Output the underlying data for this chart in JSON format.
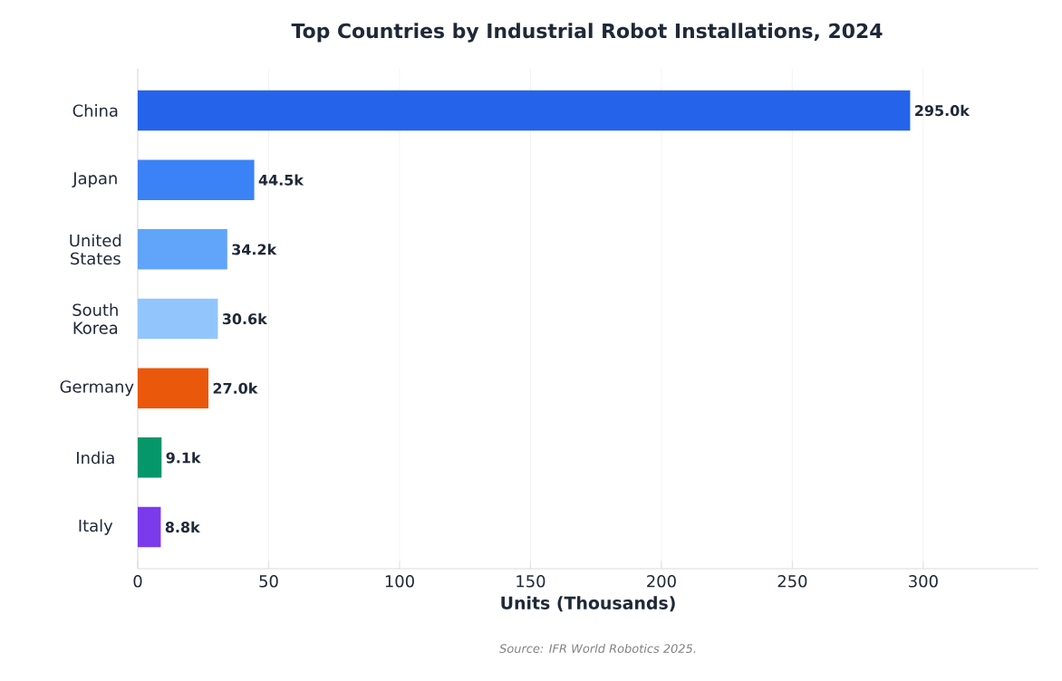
{
  "chart_data": {
    "type": "bar",
    "orientation": "horizontal",
    "title": "Top Countries by Industrial Robot Installations, 2024",
    "xlabel": "Units (Thousands)",
    "categories": [
      "China",
      "Japan",
      "United States",
      "South Korea",
      "Germany",
      "India",
      "Italy"
    ],
    "values": [
      295.0,
      44.5,
      34.2,
      30.6,
      27.0,
      9.1,
      8.8
    ],
    "colors": [
      "#2563eb",
      "#3b82f6",
      "#60a5fa",
      "#93c5fd",
      "#ea580c",
      "#059669",
      "#7c3aed"
    ],
    "value_labels": [
      "295.0k",
      "44.5k",
      "34.2k",
      "30.6k",
      "27.0k",
      "9.1k",
      "8.8k"
    ],
    "xlim": [
      0,
      344
    ],
    "xticks": [
      0,
      50,
      100,
      150,
      200,
      250,
      300
    ],
    "grid": "x",
    "annotations": [
      "Source: IFR World Robotics 2025."
    ]
  }
}
